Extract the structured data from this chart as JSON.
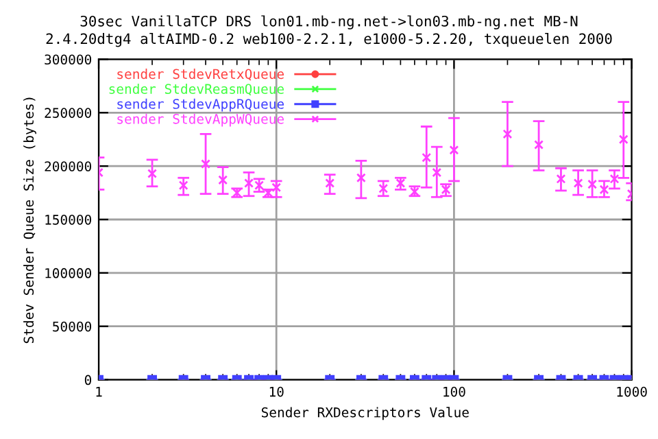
{
  "chart_data": {
    "type": "scatter",
    "title": "30sec VanillaTCP DRS lon01.mb-ng.net->lon03.mb-ng.net MB-N",
    "subtitle": "2.4.20dtg4 altAIMD-0.2 web100-2.2.1, e1000-5.2.20, txqueuelen 2000",
    "xlabel": "Sender RXDescriptors Value",
    "ylabel": "Stdev Sender Queue Size (bytes)",
    "x": [
      1,
      2,
      3,
      4,
      5,
      6,
      7,
      8,
      9,
      10,
      20,
      30,
      40,
      50,
      60,
      70,
      80,
      90,
      100,
      200,
      300,
      400,
      500,
      600,
      700,
      800,
      900,
      1000
    ],
    "series": [
      {
        "name": "sender StdevRetxQueue",
        "color": "#ff4040",
        "marker": "circle",
        "values": [
          0,
          0,
          0,
          0,
          0,
          0,
          0,
          0,
          0,
          0,
          0,
          0,
          0,
          0,
          0,
          0,
          0,
          0,
          0,
          0,
          0,
          0,
          0,
          0,
          0,
          0,
          0,
          0
        ]
      },
      {
        "name": "sender StdevReasmQueue",
        "color": "#40ff40",
        "marker": "cross",
        "values": [
          0,
          0,
          0,
          0,
          0,
          0,
          0,
          0,
          0,
          0,
          0,
          0,
          0,
          0,
          0,
          0,
          0,
          0,
          0,
          0,
          0,
          0,
          0,
          0,
          0,
          0,
          0,
          0
        ]
      },
      {
        "name": "sender StdevAppRQueue",
        "color": "#4040ff",
        "marker": "square",
        "values": [
          0,
          0,
          0,
          0,
          0,
          0,
          0,
          0,
          0,
          0,
          0,
          0,
          0,
          0,
          0,
          0,
          0,
          0,
          0,
          0,
          0,
          0,
          0,
          0,
          0,
          0,
          0,
          0
        ]
      },
      {
        "name": "sender StdevAppWQueue",
        "color": "#ff40ff",
        "marker": "cross",
        "values": [
          194000,
          193000,
          182000,
          202000,
          187000,
          175000,
          184000,
          182000,
          175000,
          180000,
          184000,
          189000,
          179000,
          184000,
          176000,
          208000,
          194000,
          178000,
          215000,
          230000,
          220000,
          188000,
          184000,
          183000,
          178000,
          188000,
          225000,
          174000
        ],
        "errors": [
          [
            178000,
            208000
          ],
          [
            181000,
            206000
          ],
          [
            173000,
            189000
          ],
          [
            174000,
            230000
          ],
          [
            174000,
            199000
          ],
          [
            171000,
            179000
          ],
          [
            172000,
            194000
          ],
          [
            176000,
            188000
          ],
          [
            171000,
            178000
          ],
          [
            171000,
            186000
          ],
          [
            174000,
            192000
          ],
          [
            170000,
            205000
          ],
          [
            172000,
            186000
          ],
          [
            178000,
            189000
          ],
          [
            172000,
            181000
          ],
          [
            180000,
            237000
          ],
          [
            171000,
            218000
          ],
          [
            172000,
            183000
          ],
          [
            186000,
            245000
          ],
          [
            200000,
            260000
          ],
          [
            196000,
            242000
          ],
          [
            177000,
            198000
          ],
          [
            173000,
            196000
          ],
          [
            171000,
            196000
          ],
          [
            171000,
            186000
          ],
          [
            179000,
            196000
          ],
          [
            189000,
            260000
          ],
          [
            168000,
            184000
          ]
        ]
      }
    ],
    "log": "x",
    "xlim": [
      1,
      1000
    ],
    "xticks": [
      1,
      {
        "value": 2,
        "label": null
      },
      {
        "value": 3,
        "label": null
      },
      {
        "value": 4,
        "label": null
      },
      {
        "value": 5,
        "label": null
      },
      {
        "value": 6,
        "label": null
      },
      {
        "value": 7,
        "label": null
      },
      {
        "value": 8,
        "label": null
      },
      {
        "value": 9,
        "label": null
      },
      10,
      {
        "value": 20,
        "label": null
      },
      {
        "value": 30,
        "label": null
      },
      {
        "value": 40,
        "label": null
      },
      {
        "value": 50,
        "label": null
      },
      {
        "value": 60,
        "label": null
      },
      {
        "value": 70,
        "label": null
      },
      {
        "value": 80,
        "label": null
      },
      {
        "value": 90,
        "label": null
      },
      100,
      {
        "value": 200,
        "label": null
      },
      {
        "value": 300,
        "label": null
      },
      {
        "value": 400,
        "label": null
      },
      {
        "value": 500,
        "label": null
      },
      {
        "value": 600,
        "label": null
      },
      {
        "value": 700,
        "label": null
      },
      {
        "value": 800,
        "label": null
      },
      {
        "value": 900,
        "label": null
      },
      1000
    ],
    "ylim": [
      0,
      300000
    ],
    "yticks": [
      0,
      50000,
      100000,
      150000,
      200000,
      250000,
      300000
    ],
    "grid": true,
    "legend": "top left"
  }
}
